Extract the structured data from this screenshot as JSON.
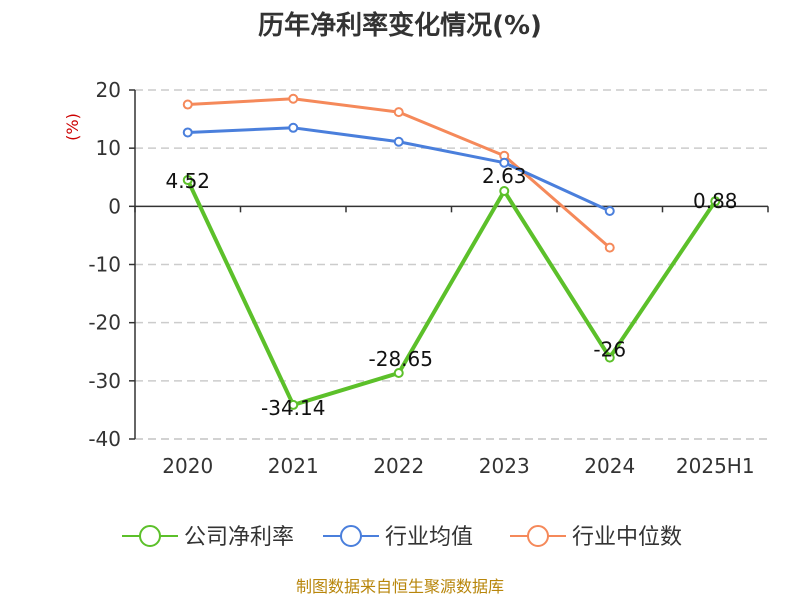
{
  "chart_data": {
    "type": "line",
    "title": "历年净利率变化情况(%)",
    "y_unit": "(%)",
    "categories": [
      "2020",
      "2021",
      "2022",
      "2023",
      "2024",
      "2025H1"
    ],
    "ylim": [
      -40,
      20
    ],
    "y_ticks": [
      "20",
      "10",
      "0",
      "-10",
      "-20",
      "-30",
      "-40"
    ],
    "grid": true,
    "legend_position": "bottom",
    "series": [
      {
        "name": "公司净利率",
        "color": "#5cc02a",
        "values": [
          4.52,
          -34.14,
          -28.65,
          2.63,
          -26,
          0.88
        ],
        "labels": [
          "4.52",
          "-34.14",
          "-28.65",
          "2.63",
          "-26",
          "0.88"
        ]
      },
      {
        "name": "行业均值",
        "color": "#4a7fdc",
        "values": [
          12.7,
          13.5,
          11.1,
          7.5,
          -0.8,
          null
        ]
      },
      {
        "name": "行业中位数",
        "color": "#f5895a",
        "values": [
          17.5,
          18.5,
          16.2,
          8.7,
          -7.1,
          null
        ]
      }
    ]
  },
  "source_note": "制图数据来自恒生聚源数据库"
}
